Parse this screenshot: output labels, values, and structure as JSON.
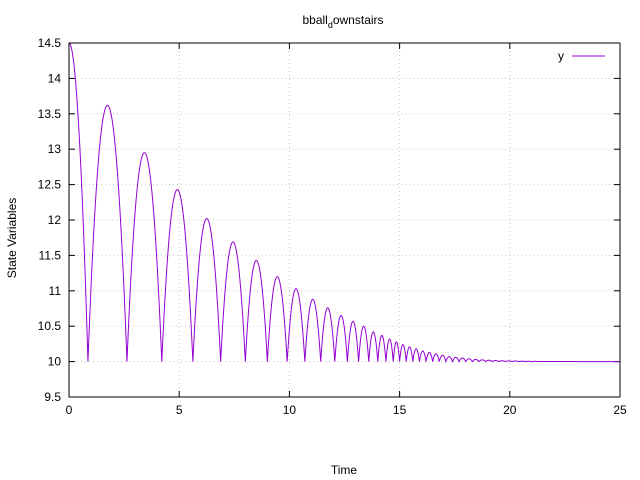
{
  "chart_data": {
    "type": "line",
    "title": "bball",
    "title_subscript": "d",
    "title_suffix": "ownstairs",
    "xlabel": "Time",
    "ylabel": "State Variables",
    "xlim": [
      0,
      25
    ],
    "ylim": [
      9.5,
      14.5
    ],
    "x_ticks": [
      0,
      5,
      10,
      15,
      20,
      25
    ],
    "x_tick_labels": [
      "0",
      "5",
      "10",
      "15",
      "20",
      "25"
    ],
    "y_ticks": [
      9.5,
      10,
      10.5,
      11,
      11.5,
      12,
      12.5,
      13,
      13.5,
      14,
      14.5
    ],
    "y_tick_labels": [
      "9.5",
      "10",
      "10.5",
      "11",
      "11.5",
      "12",
      "12.5",
      "13",
      "13.5",
      "14",
      "14.5"
    ],
    "grid": true,
    "legend_position": "top-right",
    "series": [
      {
        "name": "y",
        "color": "#9400d3",
        "initial_value": 14.5,
        "floor": 10,
        "bounce_times": [
          0.86,
          2.63,
          4.21,
          5.62,
          6.88,
          8.0,
          9.0,
          9.9,
          10.7,
          11.42,
          12.06,
          12.63,
          13.14,
          13.6,
          14.01,
          14.38,
          14.71,
          15.0,
          15.3,
          15.6,
          15.9,
          16.2,
          16.5,
          16.8,
          17.1,
          17.4,
          17.7,
          18.0,
          18.3,
          18.6,
          18.9,
          19.2,
          19.5,
          19.8,
          20.1,
          20.4,
          20.7,
          21.0,
          21.3,
          21.6,
          21.9,
          22.2,
          22.5,
          22.8,
          23.1,
          23.4,
          23.7,
          24.0,
          24.3,
          24.6,
          24.9
        ],
        "peak_values": [
          13.62,
          12.95,
          12.43,
          12.02,
          11.69,
          11.43,
          11.2,
          11.03,
          10.88,
          10.76,
          10.65,
          10.57,
          10.5,
          10.42,
          10.37,
          10.32,
          10.28,
          10.24,
          10.21,
          10.18,
          10.15,
          10.13,
          10.11,
          10.09,
          10.07,
          10.06,
          10.05,
          10.04,
          10.03,
          10.025,
          10.02,
          10.015,
          10.012,
          10.01,
          10.008,
          10.006,
          10.005,
          10.004,
          10.003,
          10.002,
          10.002,
          10.001,
          10.001,
          10.001,
          10.0,
          10.0,
          10.0,
          10.0,
          10.0,
          10.0
        ]
      }
    ]
  }
}
